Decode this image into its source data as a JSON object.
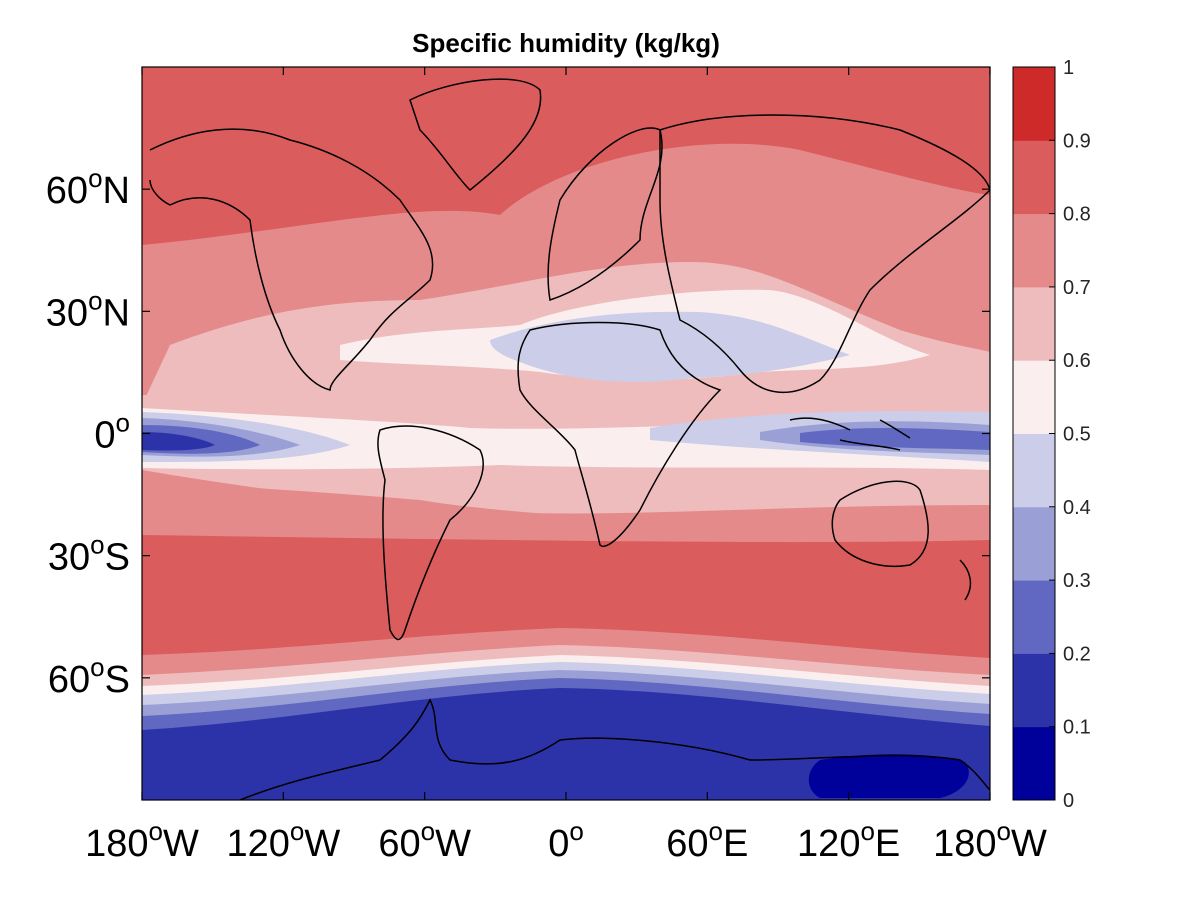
{
  "title": "Specific humidity (kg/kg)",
  "map": {
    "projection": "equirectangular",
    "lon_range": [
      -180,
      180
    ],
    "lat_range": [
      -90,
      90
    ],
    "lat_labels": [
      {
        "lat": 60,
        "text": "60",
        "sup": "o",
        "hemi": "N"
      },
      {
        "lat": 30,
        "text": "30",
        "sup": "o",
        "hemi": "N"
      },
      {
        "lat": 0,
        "text": "0",
        "sup": "o",
        "hemi": ""
      },
      {
        "lat": -30,
        "text": "30",
        "sup": "o",
        "hemi": "S"
      },
      {
        "lat": -60,
        "text": "60",
        "sup": "o",
        "hemi": "S"
      }
    ],
    "lon_labels": [
      {
        "lon": -180,
        "text": "180",
        "sup": "o",
        "hemi": "W"
      },
      {
        "lon": -120,
        "text": "120",
        "sup": "o",
        "hemi": "W"
      },
      {
        "lon": -60,
        "text": "60",
        "sup": "o",
        "hemi": "W"
      },
      {
        "lon": 0,
        "text": "0",
        "sup": "o",
        "hemi": ""
      },
      {
        "lon": 60,
        "text": "60",
        "sup": "o",
        "hemi": "E"
      },
      {
        "lon": 120,
        "text": "120",
        "sup": "o",
        "hemi": "E"
      },
      {
        "lon": 180,
        "text": "180",
        "sup": "o",
        "hemi": "W"
      }
    ]
  },
  "colorbar": {
    "min": 0,
    "max": 1,
    "ticks": [
      "0",
      "0.1",
      "0.2",
      "0.3",
      "0.4",
      "0.5",
      "0.6",
      "0.7",
      "0.8",
      "0.9",
      "1"
    ],
    "colors": [
      "#00009a",
      "#2c33a8",
      "#6168c2",
      "#9aa0d6",
      "#cbcde9",
      "#fbeeee",
      "#efbcbd",
      "#e58a8b",
      "#db5c5c",
      "#cf2a2a"
    ]
  }
}
